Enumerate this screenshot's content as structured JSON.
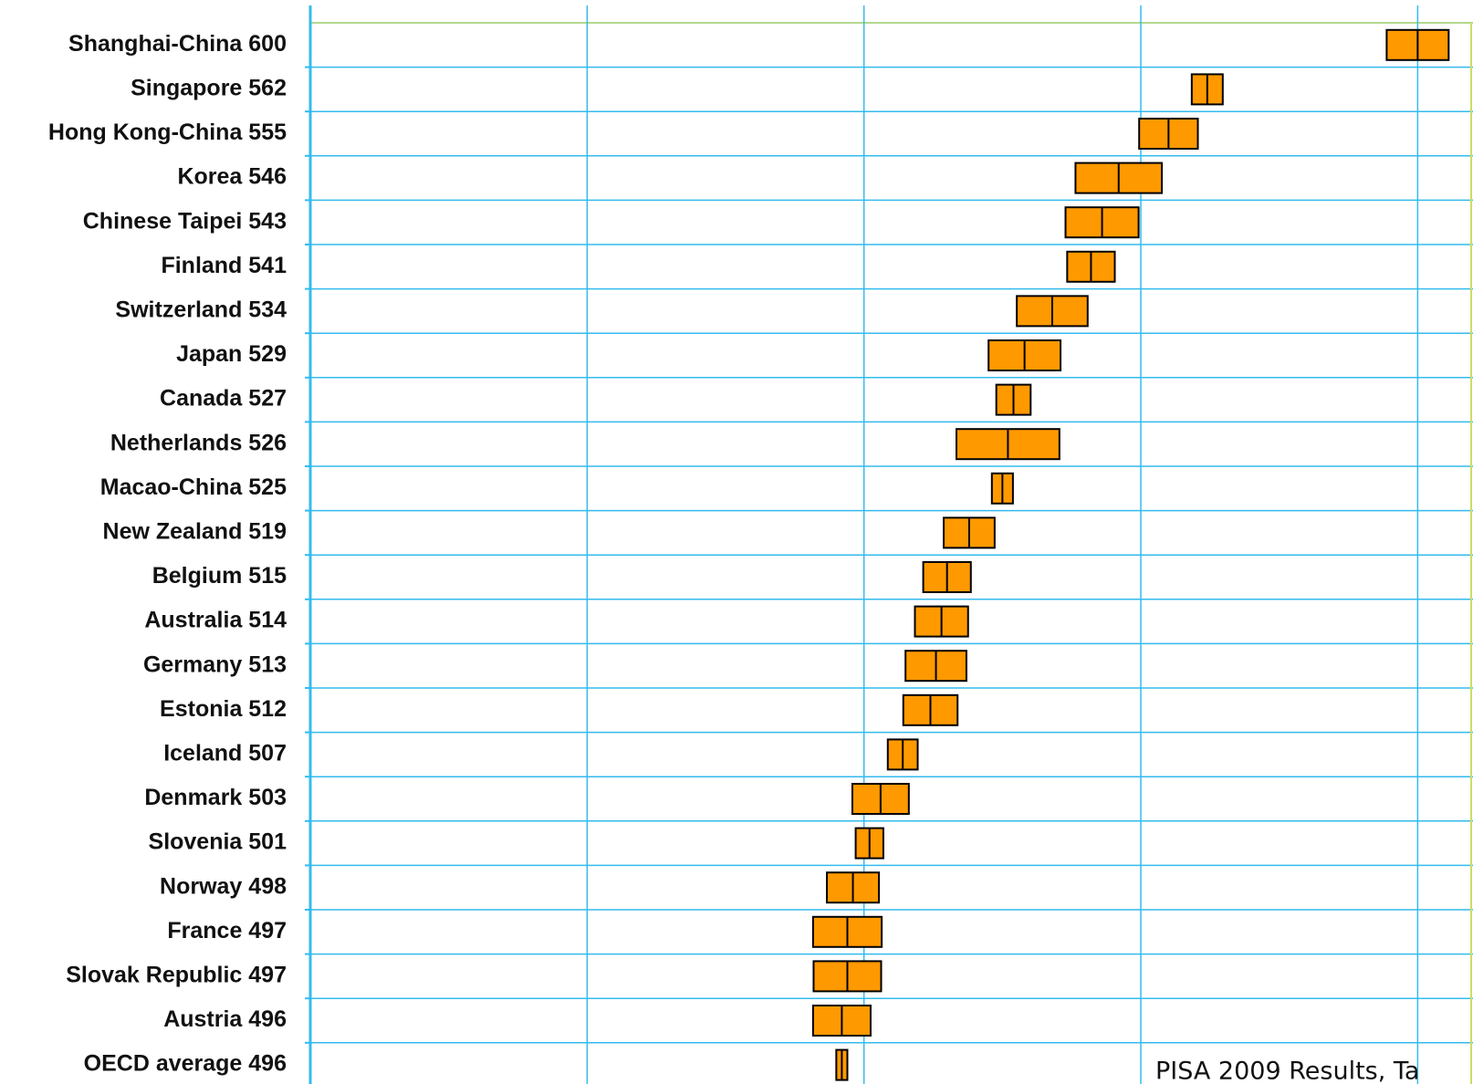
{
  "chart_data": {
    "type": "interval",
    "categories": [
      "Shanghai-China 600",
      "Singapore 562",
      "Hong Kong-China 555",
      "Korea 546",
      "Chinese Taipei 543",
      "Finland 541",
      "Switzerland 534",
      "Japan 529",
      "Canada 527",
      "Netherlands 526",
      "Macao-China 525",
      "New Zealand 519",
      "Belgium 515",
      "Australia 514",
      "Germany 513",
      "Estonia 512",
      "Iceland 507",
      "Denmark 503",
      "Slovenia 501",
      "Norway 498",
      "France 497",
      "Slovak Republic 497",
      "Austria 496",
      "OECD average 496"
    ],
    "values": [
      600,
      562,
      555,
      546,
      543,
      541,
      534,
      529,
      527,
      526,
      525,
      519,
      515,
      514,
      513,
      512,
      507,
      503,
      501,
      498,
      497,
      497,
      496,
      496
    ],
    "low": [
      594.4,
      559.2,
      549.7,
      538.2,
      536.4,
      536.7,
      527.6,
      522.5,
      523.9,
      516.7,
      523.1,
      514.4,
      510.7,
      509.2,
      507.5,
      507.1,
      504.3,
      497.9,
      498.5,
      493.3,
      490.8,
      490.9,
      490.8,
      495
    ],
    "high": [
      605.6,
      564.8,
      560.3,
      553.8,
      549.6,
      545.3,
      540.4,
      535.5,
      530.1,
      535.3,
      526.9,
      523.6,
      519.3,
      518.8,
      518.5,
      516.9,
      509.7,
      508.1,
      503.5,
      502.7,
      503.2,
      503.1,
      501.2,
      497
    ],
    "color": "#ff9900",
    "xlim": [
      400,
      609.5
    ],
    "xticks": [
      400,
      450,
      500,
      550,
      600
    ],
    "grid": true,
    "annotation": "PISA 2009 Results, Ta"
  }
}
